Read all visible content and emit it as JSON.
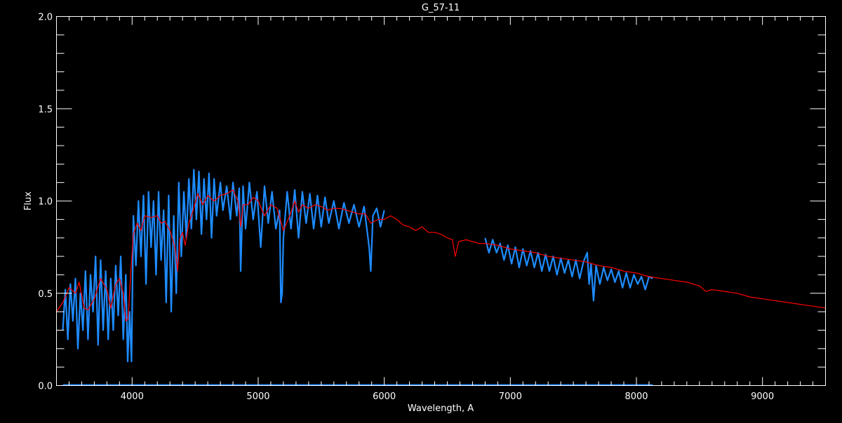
{
  "chart_data": {
    "type": "line",
    "title": "G_57-11",
    "xlabel": "Wavelength, A",
    "ylabel": "Flux",
    "xlim": [
      3400,
      9500
    ],
    "ylim": [
      0,
      2
    ],
    "x_ticks": [
      4000,
      5000,
      6000,
      7000,
      8000,
      9000
    ],
    "y_ticks": [
      "0.0",
      "0.5",
      "1.0",
      "1.5",
      "2.0"
    ],
    "x_minor_step": 100,
    "y_minor_step": 0.1,
    "grid": false,
    "background": "#000000",
    "axis_color": "#ffffff",
    "series": [
      {
        "color": "#1e8cff",
        "segments": [
          [
            [
              3450,
              0.3
            ],
            [
              3470,
              0.52
            ],
            [
              3490,
              0.25
            ],
            [
              3510,
              0.55
            ],
            [
              3530,
              0.35
            ],
            [
              3550,
              0.58
            ],
            [
              3570,
              0.2
            ],
            [
              3590,
              0.5
            ],
            [
              3610,
              0.3
            ],
            [
              3630,
              0.62
            ],
            [
              3650,
              0.25
            ],
            [
              3670,
              0.6
            ],
            [
              3690,
              0.4
            ],
            [
              3710,
              0.7
            ],
            [
              3730,
              0.22
            ],
            [
              3750,
              0.68
            ],
            [
              3770,
              0.3
            ],
            [
              3790,
              0.62
            ],
            [
              3810,
              0.25
            ],
            [
              3830,
              0.58
            ],
            [
              3850,
              0.3
            ],
            [
              3870,
              0.65
            ],
            [
              3890,
              0.38
            ],
            [
              3910,
              0.7
            ],
            [
              3930,
              0.25
            ],
            [
              3950,
              0.6
            ],
            [
              3965,
              0.13
            ],
            [
              3980,
              0.4
            ],
            [
              3995,
              0.13
            ],
            [
              4010,
              0.92
            ],
            [
              4030,
              0.65
            ],
            [
              4050,
              1.0
            ],
            [
              4070,
              0.7
            ],
            [
              4090,
              1.03
            ],
            [
              4110,
              0.55
            ],
            [
              4130,
              1.05
            ],
            [
              4150,
              0.75
            ],
            [
              4170,
              1.0
            ],
            [
              4190,
              0.6
            ],
            [
              4210,
              1.05
            ],
            [
              4230,
              0.68
            ],
            [
              4250,
              0.95
            ],
            [
              4270,
              0.45
            ],
            [
              4290,
              1.03
            ],
            [
              4310,
              0.4
            ],
            [
              4330,
              0.92
            ],
            [
              4350,
              0.5
            ],
            [
              4370,
              1.1
            ],
            [
              4390,
              0.7
            ],
            [
              4410,
              1.05
            ],
            [
              4430,
              0.8
            ],
            [
              4450,
              1.12
            ],
            [
              4470,
              0.85
            ],
            [
              4490,
              1.17
            ],
            [
              4510,
              0.9
            ],
            [
              4530,
              1.16
            ],
            [
              4550,
              0.82
            ],
            [
              4570,
              1.12
            ],
            [
              4590,
              0.9
            ],
            [
              4610,
              1.15
            ],
            [
              4630,
              0.8
            ],
            [
              4650,
              1.12
            ],
            [
              4670,
              0.92
            ],
            [
              4700,
              1.1
            ],
            [
              4720,
              0.95
            ],
            [
              4750,
              1.08
            ],
            [
              4780,
              0.9
            ],
            [
              4800,
              1.1
            ],
            [
              4830,
              0.92
            ],
            [
              4850,
              1.07
            ],
            [
              4861,
              0.62
            ],
            [
              4880,
              1.08
            ],
            [
              4900,
              0.85
            ],
            [
              4930,
              1.1
            ],
            [
              4960,
              0.9
            ],
            [
              4990,
              1.05
            ],
            [
              5020,
              0.75
            ],
            [
              5050,
              1.08
            ],
            [
              5080,
              0.88
            ],
            [
              5110,
              1.05
            ],
            [
              5140,
              0.85
            ],
            [
              5170,
              0.95
            ],
            [
              5180,
              0.45
            ],
            [
              5190,
              0.5
            ],
            [
              5200,
              0.8
            ],
            [
              5230,
              1.05
            ],
            [
              5260,
              0.85
            ],
            [
              5290,
              1.06
            ],
            [
              5320,
              0.8
            ],
            [
              5350,
              1.05
            ],
            [
              5380,
              0.88
            ],
            [
              5410,
              1.04
            ],
            [
              5440,
              0.85
            ],
            [
              5470,
              1.03
            ],
            [
              5500,
              0.86
            ],
            [
              5530,
              1.02
            ],
            [
              5560,
              0.88
            ],
            [
              5600,
              1.0
            ],
            [
              5640,
              0.85
            ],
            [
              5680,
              0.99
            ],
            [
              5720,
              0.88
            ],
            [
              5760,
              0.98
            ],
            [
              5800,
              0.86
            ],
            [
              5840,
              0.97
            ],
            [
              5880,
              0.75
            ],
            [
              5893,
              0.62
            ],
            [
              5910,
              0.92
            ],
            [
              5940,
              0.96
            ],
            [
              5970,
              0.86
            ],
            [
              6000,
              0.95
            ]
          ],
          [
            [
              6800,
              0.8
            ],
            [
              6830,
              0.72
            ],
            [
              6860,
              0.79
            ],
            [
              6890,
              0.72
            ],
            [
              6920,
              0.77
            ],
            [
              6950,
              0.68
            ],
            [
              6980,
              0.76
            ],
            [
              7010,
              0.66
            ],
            [
              7040,
              0.75
            ],
            [
              7070,
              0.64
            ],
            [
              7100,
              0.74
            ],
            [
              7130,
              0.65
            ],
            [
              7160,
              0.73
            ],
            [
              7190,
              0.64
            ],
            [
              7220,
              0.72
            ],
            [
              7250,
              0.62
            ],
            [
              7280,
              0.71
            ],
            [
              7310,
              0.62
            ],
            [
              7340,
              0.7
            ],
            [
              7370,
              0.6
            ],
            [
              7400,
              0.69
            ],
            [
              7430,
              0.61
            ],
            [
              7460,
              0.68
            ],
            [
              7490,
              0.59
            ],
            [
              7520,
              0.68
            ],
            [
              7550,
              0.58
            ],
            [
              7580,
              0.67
            ],
            [
              7610,
              0.72
            ],
            [
              7625,
              0.55
            ],
            [
              7640,
              0.66
            ],
            [
              7660,
              0.46
            ],
            [
              7680,
              0.65
            ],
            [
              7710,
              0.55
            ],
            [
              7740,
              0.64
            ],
            [
              7770,
              0.57
            ],
            [
              7800,
              0.63
            ],
            [
              7830,
              0.56
            ],
            [
              7860,
              0.62
            ],
            [
              7890,
              0.53
            ],
            [
              7920,
              0.61
            ],
            [
              7950,
              0.53
            ],
            [
              7980,
              0.6
            ],
            [
              8010,
              0.55
            ],
            [
              8040,
              0.59
            ],
            [
              8070,
              0.52
            ],
            [
              8100,
              0.59
            ],
            [
              8130,
              0.58
            ]
          ],
          [
            [
              3450,
              0.003
            ],
            [
              8130,
              0.003
            ]
          ]
        ]
      },
      {
        "color": "#ff0000",
        "segments": [
          [
            [
              3400,
              0.4
            ],
            [
              3450,
              0.45
            ],
            [
              3500,
              0.53
            ],
            [
              3550,
              0.5
            ],
            [
              3580,
              0.56
            ],
            [
              3620,
              0.42
            ],
            [
              3650,
              0.41
            ],
            [
              3700,
              0.47
            ],
            [
              3750,
              0.58
            ],
            [
              3800,
              0.52
            ],
            [
              3830,
              0.42
            ],
            [
              3870,
              0.55
            ],
            [
              3900,
              0.58
            ],
            [
              3930,
              0.5
            ],
            [
              3950,
              0.35
            ],
            [
              3968,
              0.36
            ],
            [
              3990,
              0.62
            ],
            [
              4010,
              0.82
            ],
            [
              4040,
              0.88
            ],
            [
              4070,
              0.84
            ],
            [
              4100,
              0.92
            ],
            [
              4150,
              0.91
            ],
            [
              4200,
              0.92
            ],
            [
              4230,
              0.88
            ],
            [
              4260,
              0.89
            ],
            [
              4300,
              0.84
            ],
            [
              4340,
              0.75
            ],
            [
              4360,
              0.62
            ],
            [
              4380,
              0.8
            ],
            [
              4400,
              0.83
            ],
            [
              4420,
              0.76
            ],
            [
              4450,
              0.88
            ],
            [
              4480,
              0.94
            ],
            [
              4520,
              1.04
            ],
            [
              4560,
              0.98
            ],
            [
              4600,
              1.03
            ],
            [
              4650,
              1.0
            ],
            [
              4700,
              1.03
            ],
            [
              4750,
              1.04
            ],
            [
              4800,
              1.06
            ],
            [
              4840,
              1.0
            ],
            [
              4861,
              0.86
            ],
            [
              4880,
              0.98
            ],
            [
              4920,
              0.98
            ],
            [
              4960,
              1.02
            ],
            [
              5000,
              1.0
            ],
            [
              5050,
              0.92
            ],
            [
              5100,
              0.98
            ],
            [
              5150,
              0.96
            ],
            [
              5175,
              0.9
            ],
            [
              5200,
              0.84
            ],
            [
              5250,
              0.92
            ],
            [
              5290,
              1.0
            ],
            [
              5320,
              0.94
            ],
            [
              5350,
              0.98
            ],
            [
              5400,
              0.96
            ],
            [
              5450,
              0.98
            ],
            [
              5500,
              0.97
            ],
            [
              5550,
              0.95
            ],
            [
              5600,
              0.96
            ],
            [
              5650,
              0.96
            ],
            [
              5700,
              0.95
            ],
            [
              5750,
              0.94
            ],
            [
              5800,
              0.93
            ],
            [
              5850,
              0.93
            ],
            [
              5893,
              0.88
            ],
            [
              5950,
              0.9
            ],
            [
              6000,
              0.9
            ],
            [
              6050,
              0.92
            ],
            [
              6100,
              0.9
            ],
            [
              6150,
              0.87
            ],
            [
              6200,
              0.86
            ],
            [
              6250,
              0.84
            ],
            [
              6300,
              0.86
            ],
            [
              6350,
              0.83
            ],
            [
              6400,
              0.83
            ],
            [
              6450,
              0.82
            ],
            [
              6500,
              0.8
            ],
            [
              6540,
              0.79
            ],
            [
              6563,
              0.7
            ],
            [
              6590,
              0.78
            ],
            [
              6650,
              0.79
            ],
            [
              6700,
              0.78
            ],
            [
              6750,
              0.77
            ],
            [
              6800,
              0.77
            ],
            [
              6900,
              0.76
            ],
            [
              7000,
              0.74
            ],
            [
              7100,
              0.73
            ],
            [
              7200,
              0.72
            ],
            [
              7300,
              0.7
            ],
            [
              7400,
              0.69
            ],
            [
              7500,
              0.68
            ],
            [
              7600,
              0.67
            ],
            [
              7700,
              0.65
            ],
            [
              7800,
              0.64
            ],
            [
              7900,
              0.62
            ],
            [
              8000,
              0.61
            ],
            [
              8100,
              0.59
            ],
            [
              8200,
              0.58
            ],
            [
              8300,
              0.57
            ],
            [
              8400,
              0.56
            ],
            [
              8500,
              0.54
            ],
            [
              8550,
              0.51
            ],
            [
              8600,
              0.52
            ],
            [
              8700,
              0.51
            ],
            [
              8800,
              0.5
            ],
            [
              8900,
              0.48
            ],
            [
              9000,
              0.47
            ],
            [
              9100,
              0.46
            ],
            [
              9200,
              0.45
            ],
            [
              9300,
              0.44
            ],
            [
              9400,
              0.43
            ],
            [
              9500,
              0.42
            ]
          ]
        ]
      }
    ]
  }
}
